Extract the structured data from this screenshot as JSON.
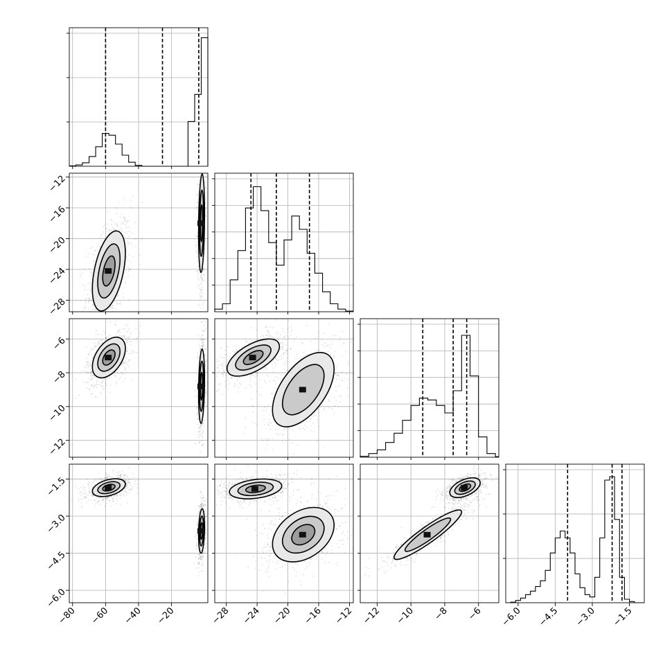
{
  "chart_data": {
    "type": "corner",
    "grid": true,
    "parameters": [
      {
        "range": [
          -82,
          2
        ],
        "ticks": [
          -80,
          -60,
          -40,
          -20
        ],
        "tick_labels": [
          "−80",
          "−60",
          "−40",
          "−20"
        ]
      },
      {
        "range": [
          -29.5,
          -11.5
        ],
        "ticks": [
          -28,
          -24,
          -20,
          -16,
          -12
        ],
        "tick_labels": [
          "−28",
          "−24",
          "−20",
          "−16",
          "−12"
        ]
      },
      {
        "range": [
          -13,
          -4.8
        ],
        "ticks": [
          -12,
          -10,
          -8,
          -6
        ],
        "tick_labels": [
          "−12",
          "−10",
          "−8",
          "−6"
        ]
      },
      {
        "range": [
          -6.5,
          -0.9
        ],
        "ticks": [
          -6.0,
          -4.5,
          -3.0,
          -1.5
        ],
        "tick_labels": [
          "−6.0",
          "−4.5",
          "−3.0",
          "−1.5"
        ]
      }
    ],
    "diagonal_histograms": [
      {
        "param": 0,
        "quantiles": [
          -60,
          -25.5,
          -3.5
        ],
        "bin_edges": [
          -82,
          -78,
          -74,
          -70,
          -66,
          -62,
          -58,
          -54,
          -50,
          -46,
          -42,
          -38,
          -34,
          -30,
          -26,
          -22,
          -18,
          -14,
          -10,
          -6,
          -2,
          2
        ],
        "counts": [
          0.01,
          0.03,
          0.08,
          0.22,
          0.44,
          0.74,
          0.7,
          0.5,
          0.25,
          0.09,
          0.02,
          0,
          0,
          0,
          0,
          0,
          0,
          0,
          1.01,
          1.62,
          2.9,
          0
        ],
        "ylim": [
          0,
          3.0
        ],
        "yticks": [
          1.0,
          2.0,
          3.0
        ]
      },
      {
        "param": 1,
        "quantiles": [
          -24.8,
          -21.5,
          -17.2
        ],
        "bin_edges": [
          -29.5,
          -28.5,
          -27.5,
          -26.5,
          -25.5,
          -24.5,
          -23.5,
          -22.5,
          -21.5,
          -20.5,
          -19.5,
          -18.5,
          -17.5,
          -16.5,
          -15.5,
          -14.5,
          -13.5,
          -12.5,
          -11.5
        ],
        "counts": [
          0.02,
          0.06,
          0.24,
          0.46,
          0.78,
          0.94,
          0.76,
          0.52,
          0.35,
          0.54,
          0.72,
          0.62,
          0.44,
          0.29,
          0.15,
          0.06,
          0.02,
          0.005
        ],
        "ylim": [
          0,
          1.0
        ],
        "yticks": [
          0.2,
          0.4,
          0.6,
          0.8,
          1.0
        ]
      },
      {
        "param": 2,
        "quantiles": [
          -9.3,
          -7.5,
          -6.7
        ],
        "bin_edges": [
          -13,
          -12.5,
          -12,
          -11.5,
          -11,
          -10.5,
          -10,
          -9.5,
          -9,
          -8.5,
          -8,
          -7.5,
          -7,
          -6.5,
          -6,
          -5.5,
          -5,
          -4.8
        ],
        "counts": [
          0.005,
          0.02,
          0.04,
          0.08,
          0.13,
          0.2,
          0.28,
          0.32,
          0.31,
          0.28,
          0.24,
          0.36,
          0.66,
          0.44,
          0.11,
          0.02,
          0.003
        ],
        "ylim": [
          0,
          0.72
        ],
        "yticks": [
          0.144,
          0.288,
          0.432,
          0.576,
          0.72
        ]
      },
      {
        "param": 3,
        "quantiles": [
          -4.0,
          -2.2,
          -1.8
        ],
        "bin_edges": [
          -6.5,
          -6.3,
          -6.1,
          -5.9,
          -5.7,
          -5.5,
          -5.3,
          -5.1,
          -4.9,
          -4.7,
          -4.5,
          -4.3,
          -4.1,
          -3.9,
          -3.7,
          -3.5,
          -3.3,
          -3.1,
          -2.9,
          -2.7,
          -2.5,
          -2.3,
          -2.1,
          -1.9,
          -1.7,
          -1.5,
          -1.3,
          -1.1,
          -0.9
        ],
        "counts": [
          0,
          0.005,
          0.02,
          0.04,
          0.07,
          0.1,
          0.14,
          0.19,
          0.28,
          0.43,
          0.56,
          0.62,
          0.56,
          0.43,
          0.25,
          0.13,
          0.07,
          0.05,
          0.22,
          0.56,
          1.06,
          1.09,
          0.72,
          0.22,
          0.03,
          0.01,
          0,
          0
        ],
        "ylim": [
          0,
          1.15
        ],
        "yticks": [
          0.383,
          0.767,
          1.15
        ]
      }
    ],
    "panels_2d": [
      {
        "x": 0,
        "y": 1,
        "clusters": [
          {
            "cx": -58,
            "cy": -24.2,
            "sx": 5.0,
            "sy": 2.6,
            "rho": 0.45,
            "weight": 0.55,
            "levels": [
              0.08,
              0.45,
              1.0
            ]
          },
          {
            "cx": -1.8,
            "cy": -18.0,
            "sx": 0.9,
            "sy": 3.2,
            "rho": 0.2,
            "weight": 0.45,
            "levels": [
              0.03,
              0.18,
              0.45
            ]
          }
        ]
      },
      {
        "x": 0,
        "y": 2,
        "clusters": [
          {
            "cx": -58,
            "cy": -7.1,
            "sx": 5.0,
            "sy": 0.6,
            "rho": 0.45,
            "weight": 0.55,
            "levels": [
              0.1,
              0.5,
              1.0
            ]
          },
          {
            "cx": -1.8,
            "cy": -8.8,
            "sx": 0.9,
            "sy": 1.1,
            "rho": 0.2,
            "weight": 0.45,
            "levels": [
              0.04,
              0.2,
              0.45
            ]
          }
        ]
      },
      {
        "x": 0,
        "y": 3,
        "clusters": [
          {
            "cx": -58,
            "cy": -1.85,
            "sx": 5.0,
            "sy": 0.18,
            "rho": 0.4,
            "weight": 0.55,
            "levels": [
              0.1,
              0.5,
              1.0
            ]
          },
          {
            "cx": -1.8,
            "cy": -3.6,
            "sx": 0.9,
            "sy": 0.45,
            "rho": 0.2,
            "weight": 0.45,
            "levels": [
              0.04,
              0.2,
              0.45
            ]
          }
        ]
      },
      {
        "x": 1,
        "y": 2,
        "clusters": [
          {
            "cx": -24.5,
            "cy": -7.1,
            "sx": 1.7,
            "sy": 0.55,
            "rho": 0.6,
            "weight": 0.55,
            "levels": [
              0.1,
              0.5,
              1.0
            ]
          },
          {
            "cx": -18.0,
            "cy": -9.0,
            "sx": 2.0,
            "sy": 1.1,
            "rho": 0.55,
            "weight": 0.45,
            "levels": [
              0.15,
              0.45
            ]
          }
        ]
      },
      {
        "x": 1,
        "y": 3,
        "clusters": [
          {
            "cx": -24.2,
            "cy": -1.9,
            "sx": 1.7,
            "sy": 0.2,
            "rho": 0.3,
            "weight": 0.55,
            "levels": [
              0.1,
              0.5,
              1.0
            ]
          },
          {
            "cx": -18.0,
            "cy": -3.75,
            "sx": 2.0,
            "sy": 0.55,
            "rho": 0.35,
            "weight": 0.45,
            "levels": [
              0.15,
              0.45,
              0.85
            ]
          }
        ]
      },
      {
        "x": 2,
        "y": 3,
        "clusters": [
          {
            "cx": -6.8,
            "cy": -1.85,
            "sx": 0.45,
            "sy": 0.2,
            "rho": 0.5,
            "weight": 0.55,
            "levels": [
              0.1,
              0.5,
              1.0
            ]
          },
          {
            "cx": -9.0,
            "cy": -3.75,
            "sx": 1.0,
            "sy": 0.5,
            "rho": 0.92,
            "weight": 0.45,
            "levels": [
              0.15,
              0.45
            ]
          }
        ]
      }
    ]
  }
}
